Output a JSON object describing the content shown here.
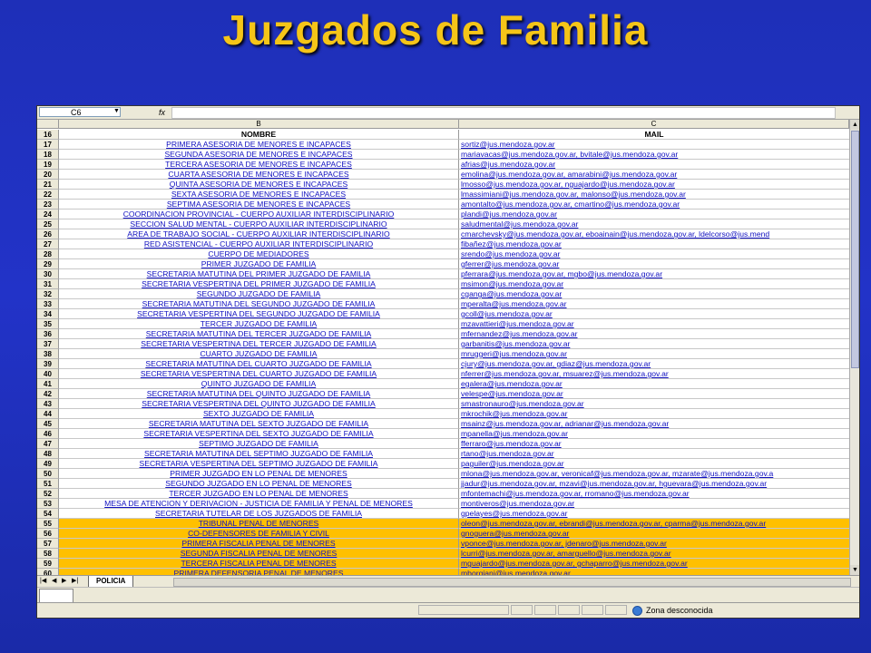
{
  "slide": {
    "title": "Juzgados de Familia"
  },
  "formula_bar": {
    "cell_ref": "C6",
    "fx": "fx"
  },
  "columns": {
    "b": "B",
    "c": "C"
  },
  "header_row": {
    "num": "16",
    "nombre": "NOMBRE",
    "mail": "MAIL"
  },
  "rows": [
    {
      "num": "17",
      "name": "PRIMERA ASESORIA DE MENORES E INCAPACES",
      "mail": "sortiz@jus.mendoza.gov.ar"
    },
    {
      "num": "18",
      "name": "SEGUNDA ASESORIA DE MENORES E INCAPACES",
      "mail": "mariavacas@jus.mendoza.gov.ar, bvitale@jus.mendoza.gov.ar"
    },
    {
      "num": "19",
      "name": "TERCERA ASESORIA DE MENORES E INCAPACES",
      "mail": "afrias@jus.mendoza.gov.ar"
    },
    {
      "num": "20",
      "name": "CUARTA ASESORIA DE MENORES E INCAPACES",
      "mail": "emolina@jus.mendoza.gov.ar, amarabini@jus.mendoza.gov.ar"
    },
    {
      "num": "21",
      "name": "QUINTA ASESORIA DE MENORES E INCAPACES",
      "mail": "lmosso@jus.mendoza.gov.ar, nguajardo@jus.mendoza.gov.ar"
    },
    {
      "num": "22",
      "name": "SEXTA ASESORIA DE MENORES E INCAPACES",
      "mail": "lmassimiani@jus.mendoza.gov.ar, malonso@jus.mendoza.gov.ar"
    },
    {
      "num": "23",
      "name": "SEPTIMA ASESORIA DE MENORES E INCAPACES",
      "mail": "amontalto@jus.mendoza.gov.ar, cmartino@jus.mendoza.gov.ar"
    },
    {
      "num": "24",
      "name": "COORDINACION PROVINCIAL - CUERPO AUXILIAR INTERDISCIPLINARIO",
      "mail": "plandi@jus.mendoza.gov.ar"
    },
    {
      "num": "25",
      "name": "SECCION SALUD MENTAL - CUERPO AUXILIAR INTERDISCIPLINARIO",
      "mail": "saludmental@jus.mendoza.gov.ar"
    },
    {
      "num": "26",
      "name": "AREA DE TRABAJO SOCIAL - CUERPO AUXILIAR INTERDISCIPLINARIO",
      "mail": "cmarchevsky@jus.mendoza.gov.ar, eboainain@jus.mendoza.gov.ar, ldelcorso@jus.mend"
    },
    {
      "num": "27",
      "name": "RED ASISTENCIAL - CUERPO AUXILIAR INTERDISCIPLINARIO",
      "mail": "fibañez@jus.mendoza.gov.ar"
    },
    {
      "num": "28",
      "name": "CUERPO DE MEDIADORES",
      "mail": "srendo@jus.mendoza.gov.ar"
    },
    {
      "num": "29",
      "name": "PRIMER JUZGADO DE FAMILIA",
      "mail": "gferrer@jus.mendoza.gov.ar"
    },
    {
      "num": "30",
      "name": "SECRETARIA MATUTINA DEL PRIMER JUZGADO DE FAMILIA",
      "mail": "pferrara@jus.mendoza.gov.ar, mgbo@jus.mendoza.gov.ar"
    },
    {
      "num": "31",
      "name": "SECRETARIA VESPERTINA DEL PRIMER JUZGADO DE FAMILIA",
      "mail": "msimon@jus.mendoza.gov.ar"
    },
    {
      "num": "32",
      "name": "SEGUNDO JUZGADO DE FAMILIA",
      "mail": "cganga@jus.mendoza.gov.ar"
    },
    {
      "num": "33",
      "name": "SECRETARIA MATUTINA DEL SEGUNDO JUZGADO DE FAMILIA",
      "mail": "mperalta@jus.mendoza.gov.ar"
    },
    {
      "num": "34",
      "name": "SECRETARIA VESPERTINA DEL SEGUNDO JUZGADO DE FAMILIA",
      "mail": "gcoll@jus.mendoza.gov.ar"
    },
    {
      "num": "35",
      "name": "TERCER JUZGADO DE FAMILIA",
      "mail": "mzavattieri@jus.mendoza.gov.ar"
    },
    {
      "num": "36",
      "name": "SECRETARIA MATUTINA DEL TERCER JUZGADO DE FAMILIA",
      "mail": "mfernandez@jus.mendoza.gov.ar"
    },
    {
      "num": "37",
      "name": "SECRETARIA VESPERTINA DEL TERCER JUZGADO DE FAMILIA",
      "mail": "garbanitis@jus.mendoza.gov.ar"
    },
    {
      "num": "38",
      "name": "CUARTO JUZGADO DE FAMILIA",
      "mail": "mruggeri@jus.mendoza.gov.ar"
    },
    {
      "num": "39",
      "name": "SECRETARIA MATUTINA DEL CUARTO JUZGADO DE FAMILIA",
      "mail": "cjury@jus.mendoza.gov.ar, gdiaz@jus.mendoza.gov.ar"
    },
    {
      "num": "40",
      "name": "SECRETARIA VESPERTINA DEL CUARTO JUZGADO DE FAMILIA",
      "mail": "nferrer@jus.mendoza.gov.ar, msuarez@jus.mendoza.gov.ar"
    },
    {
      "num": "41",
      "name": "QUINTO JUZGADO DE FAMILIA",
      "mail": "egalera@jus.mendoza.gov.ar"
    },
    {
      "num": "42",
      "name": "SECRETARIA MATUTINA DEL QUINTO JUZGADO DE FAMILIA",
      "mail": "velespe@jus.mendoza.gov.ar"
    },
    {
      "num": "43",
      "name": "SECRETARIA VESPERTINA DEL QUINTO JUZGADO DE FAMILIA",
      "mail": "smastronauro@jus.mendoza.gov.ar"
    },
    {
      "num": "44",
      "name": "SEXTO JUZGADO DE FAMILIA",
      "mail": "mkrochik@jus.mendoza.gov.ar"
    },
    {
      "num": "45",
      "name": "SECRETARIA MATUTINA DEL SEXTO JUZGADO DE FAMILIA",
      "mail": "msainz@jus.mendoza.gov.ar, adrianar@jus.mendoza.gov.ar"
    },
    {
      "num": "46",
      "name": "SECRETARIA VESPERTINA DEL SEXTO JUZGADO DE FAMILIA",
      "mail": "mpanella@jus.mendoza.gov.ar"
    },
    {
      "num": "47",
      "name": "SEPTIMO JUZGADO DE FAMILIA",
      "mail": "fferraro@jus.mendoza.gov.ar"
    },
    {
      "num": "48",
      "name": "SECRETARIA MATUTINA DEL SEPTIMO JUZGADO DE FAMILIA",
      "mail": "rtano@jus.mendoza.gov.ar"
    },
    {
      "num": "49",
      "name": "SECRETARIA VESPERTINA DEL SEPTIMO JUZGADO DE FAMILIA",
      "mail": "paguiler@jus.mendoza.gov.ar"
    },
    {
      "num": "50",
      "name": "PRIMER JUZGADO EN LO PENAL DE MENORES",
      "mail": "mlona@jus.mendoza.gov.ar, veronicaf@jus.mendoza.gov.ar, mzarate@jus.mendoza.gov.a"
    },
    {
      "num": "51",
      "name": "SEGUNDO JUZGADO EN LO PENAL DE MENORES",
      "mail": "jjadur@jus.mendoza.gov.ar, mzavi@jus.mendoza.gov.ar, hguevara@jus.mendoza.gov.ar"
    },
    {
      "num": "52",
      "name": "TERCER JUZGADO EN LO PENAL DE MENORES",
      "mail": "mfontemachi@jus.mendoza.gov.ar, rromano@jus.mendoza.gov.ar"
    },
    {
      "num": "53",
      "name": "MESA DE ATENCION Y DERIVACION - JUSTICIA DE FAMILIA Y PENAL DE MENORES",
      "mail": "montiveros@jus.mendoza.gov.ar"
    },
    {
      "num": "54",
      "name": "SECRETARIA TUTELAR DE LOS JUZGADOS DE FAMILIA",
      "mail": "gpelayes@jus.mendoza.gov.ar"
    },
    {
      "num": "55",
      "name": "TRIBUNAL PENAL DE MENORES",
      "mail": "oleon@jus.mendoza.gov.ar, ebrandi@jus.mendoza.gov.ar, cparma@jus.mendoza.gov.ar",
      "highlight": true
    },
    {
      "num": "56",
      "name": "CO-DEFENSORES DE FAMILIA Y CIVIL",
      "mail": "gnoguera@jus.mendoza.gov.ar",
      "highlight": true
    },
    {
      "num": "57",
      "name": "PRIMERA FISCALIA PENAL DE MENORES",
      "mail": "vponce@jus.mendoza.gov.ar, jdenaro@jus.mendoza.gov.ar",
      "highlight": true
    },
    {
      "num": "58",
      "name": "SEGUNDA FISCALIA PENAL DE MENORES",
      "mail": "lcurri@jus.mendoza.gov.ar, amarguello@jus.mendoza.gov.ar",
      "highlight": true
    },
    {
      "num": "59",
      "name": "TERCERA FISCALIA PENAL DE MENORES",
      "mail": "mguajardo@jus.mendoza.gov.ar, gchaparro@jus.mendoza.gov.ar",
      "highlight": true
    },
    {
      "num": "60",
      "name": "PRIMERA DEFENSORIA PENAL DE MENORES",
      "mail": "mborgiani@jus.mendoza.gov.ar",
      "highlight": true
    }
  ],
  "sheet_tabs": {
    "active": "POLICIA",
    "nav": [
      "|◀",
      "◀",
      "▶",
      "▶|"
    ]
  },
  "status_bar": {
    "zone": "Zona desconocida"
  },
  "colors": {
    "title": "#f5c518",
    "background": "#2233c8",
    "highlight": "#ffc000",
    "link": "#1010c0"
  }
}
